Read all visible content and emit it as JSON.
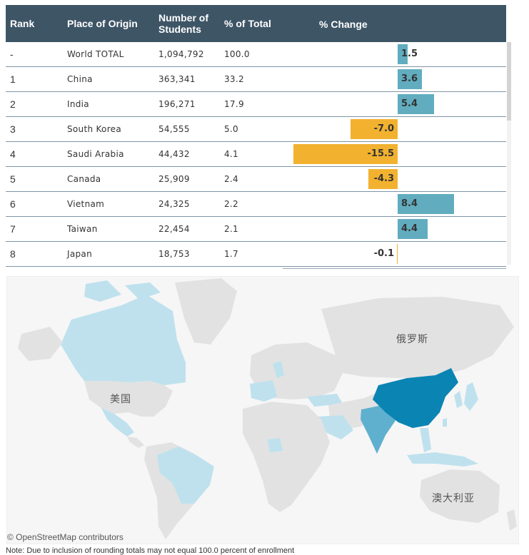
{
  "table": {
    "headers": {
      "rank": "Rank",
      "origin": "Place of Origin",
      "students_line1": "Number of",
      "students_line2": "Students",
      "pct_total": "% of Total",
      "pct_change": "% Change"
    },
    "rows": [
      {
        "rank": "-",
        "origin": "World TOTAL",
        "students": "1,094,792",
        "pct_total": "100.0",
        "pct_change": "1.5",
        "change_value": 1.5
      },
      {
        "rank": "1",
        "origin": "China",
        "students": "363,341",
        "pct_total": "33.2",
        "pct_change": "3.6",
        "change_value": 3.6
      },
      {
        "rank": "2",
        "origin": "India",
        "students": "196,271",
        "pct_total": "17.9",
        "pct_change": "5.4",
        "change_value": 5.4
      },
      {
        "rank": "3",
        "origin": "South Korea",
        "students": "54,555",
        "pct_total": "5.0",
        "pct_change": "-7.0",
        "change_value": -7.0
      },
      {
        "rank": "4",
        "origin": "Saudi Arabia",
        "students": "44,432",
        "pct_total": "4.1",
        "pct_change": "-15.5",
        "change_value": -15.5
      },
      {
        "rank": "5",
        "origin": "Canada",
        "students": "25,909",
        "pct_total": "2.4",
        "pct_change": "-4.3",
        "change_value": -4.3
      },
      {
        "rank": "6",
        "origin": "Vietnam",
        "students": "24,325",
        "pct_total": "2.2",
        "pct_change": "8.4",
        "change_value": 8.4
      },
      {
        "rank": "7",
        "origin": "Taiwan",
        "students": "22,454",
        "pct_total": "2.1",
        "pct_change": "4.4",
        "change_value": 4.4
      },
      {
        "rank": "8",
        "origin": "Japan",
        "students": "18,753",
        "pct_total": "1.7",
        "pct_change": "-0.1",
        "change_value": -0.1
      }
    ],
    "colors": {
      "header_bg": "#3e5566",
      "positive_bar": "#61adbf",
      "negative_bar": "#f2b230"
    }
  },
  "map": {
    "labels": {
      "russia": "俄罗斯",
      "usa": "美国",
      "australia": "澳大利亚"
    },
    "credit": "© OpenStreetMap contributors",
    "colors": {
      "land": "#e2e2e2",
      "highlight_dark": "#0a84b3",
      "highlight_medium": "#5fb0cf",
      "highlight_light": "#bfe1ee",
      "sea": "#f6f6f6"
    }
  },
  "footnote": "Note: Due to inclusion of rounding totals may not equal 100.0 percent of enrollment"
}
